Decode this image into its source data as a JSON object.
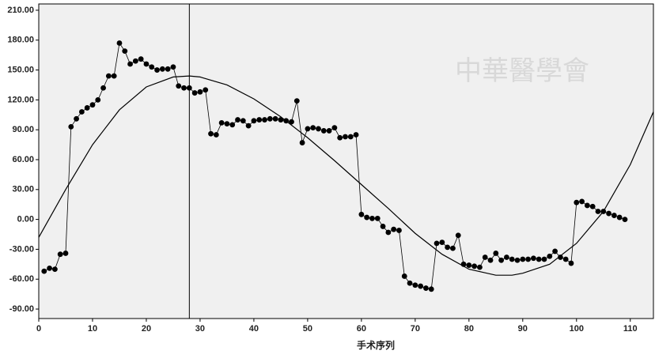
{
  "chart_data": {
    "type": "line",
    "x_label": "手术序列",
    "watermark": "中華醫學會",
    "xlim": [
      0,
      114.3
    ],
    "ylim": [
      -99.5,
      216.3
    ],
    "xticks": [
      0,
      10,
      20,
      30,
      40,
      50,
      60,
      70,
      80,
      90,
      100,
      110
    ],
    "yticks": [
      {
        "value": 210,
        "label": "210.00"
      },
      {
        "value": 180,
        "label": "180.00"
      },
      {
        "value": 150,
        "label": "150.00"
      },
      {
        "value": 120,
        "label": "120.00"
      },
      {
        "value": 90,
        "label": "90.00"
      },
      {
        "value": 60,
        "label": "60.00"
      },
      {
        "value": 30,
        "label": "30.00"
      },
      {
        "value": 0,
        "label": "0.00"
      },
      {
        "value": -30,
        "label": "-30.00"
      },
      {
        "value": -60,
        "label": "-60.00"
      },
      {
        "value": -90,
        "label": "-90.00"
      }
    ],
    "reference_x": 28,
    "series": [
      {
        "color": "#000000",
        "x": [
          1,
          2,
          3,
          4,
          5,
          6,
          7,
          8,
          9,
          10,
          11,
          12,
          13,
          14,
          15,
          16,
          17,
          18,
          19,
          20,
          21,
          22,
          23,
          24,
          25,
          26,
          27,
          28,
          29,
          30,
          31,
          32,
          33,
          34,
          35,
          36,
          37,
          38,
          39,
          40,
          41,
          42,
          43,
          44,
          45,
          46,
          47,
          48,
          49,
          50,
          51,
          52,
          53,
          54,
          55,
          56,
          57,
          58,
          59,
          60,
          61,
          62,
          63,
          64,
          65,
          66,
          67,
          68,
          69,
          70,
          71,
          72,
          73,
          74,
          75,
          76,
          77,
          78,
          79,
          80,
          81,
          82,
          83,
          84,
          85,
          86,
          87,
          88,
          89,
          90,
          91,
          92,
          93,
          94,
          95,
          96,
          97,
          98,
          99,
          100,
          101,
          102,
          103,
          104,
          105,
          106,
          107,
          108,
          109
        ],
        "values": [
          -52,
          -49,
          -50,
          -35,
          -34,
          93,
          101,
          108,
          112,
          115,
          120,
          132,
          144,
          144,
          177,
          169,
          156,
          159,
          161,
          156,
          153,
          150,
          151,
          151,
          153,
          134,
          132,
          132,
          127,
          128,
          130,
          86,
          85,
          97,
          96,
          95,
          100,
          99,
          94,
          99,
          100,
          100,
          101,
          101,
          100,
          99,
          98,
          119,
          77,
          91,
          92,
          91,
          89,
          89,
          92,
          82,
          83,
          83,
          85,
          5,
          2,
          1,
          1,
          -7,
          -13,
          -10,
          -11,
          -57,
          -64,
          -66,
          -67,
          -69,
          -70,
          -24,
          -23,
          -28,
          -29,
          -16,
          -45,
          -46,
          -47,
          -48,
          -38,
          -41,
          -34,
          -41,
          -38,
          -40,
          -41,
          -40,
          -40,
          -39,
          -40,
          -40,
          -37,
          -32,
          -38,
          -40,
          -44,
          17,
          18,
          14,
          13,
          8,
          8,
          6,
          4,
          2,
          0
        ]
      }
    ],
    "fit": {
      "color": "#000000",
      "x": [
        0,
        5,
        10,
        15,
        20,
        25,
        28,
        30,
        35,
        40,
        45,
        50,
        55,
        60,
        65,
        70,
        75,
        80,
        85,
        88,
        90,
        95,
        100,
        105,
        110,
        114.3
      ],
      "values": [
        -18,
        30,
        75,
        110,
        133,
        143,
        144,
        143,
        135,
        121,
        103,
        82,
        59,
        35,
        11,
        -14,
        -35,
        -50,
        -56,
        -56,
        -54,
        -45,
        -24,
        8,
        55,
        108
      ]
    }
  }
}
